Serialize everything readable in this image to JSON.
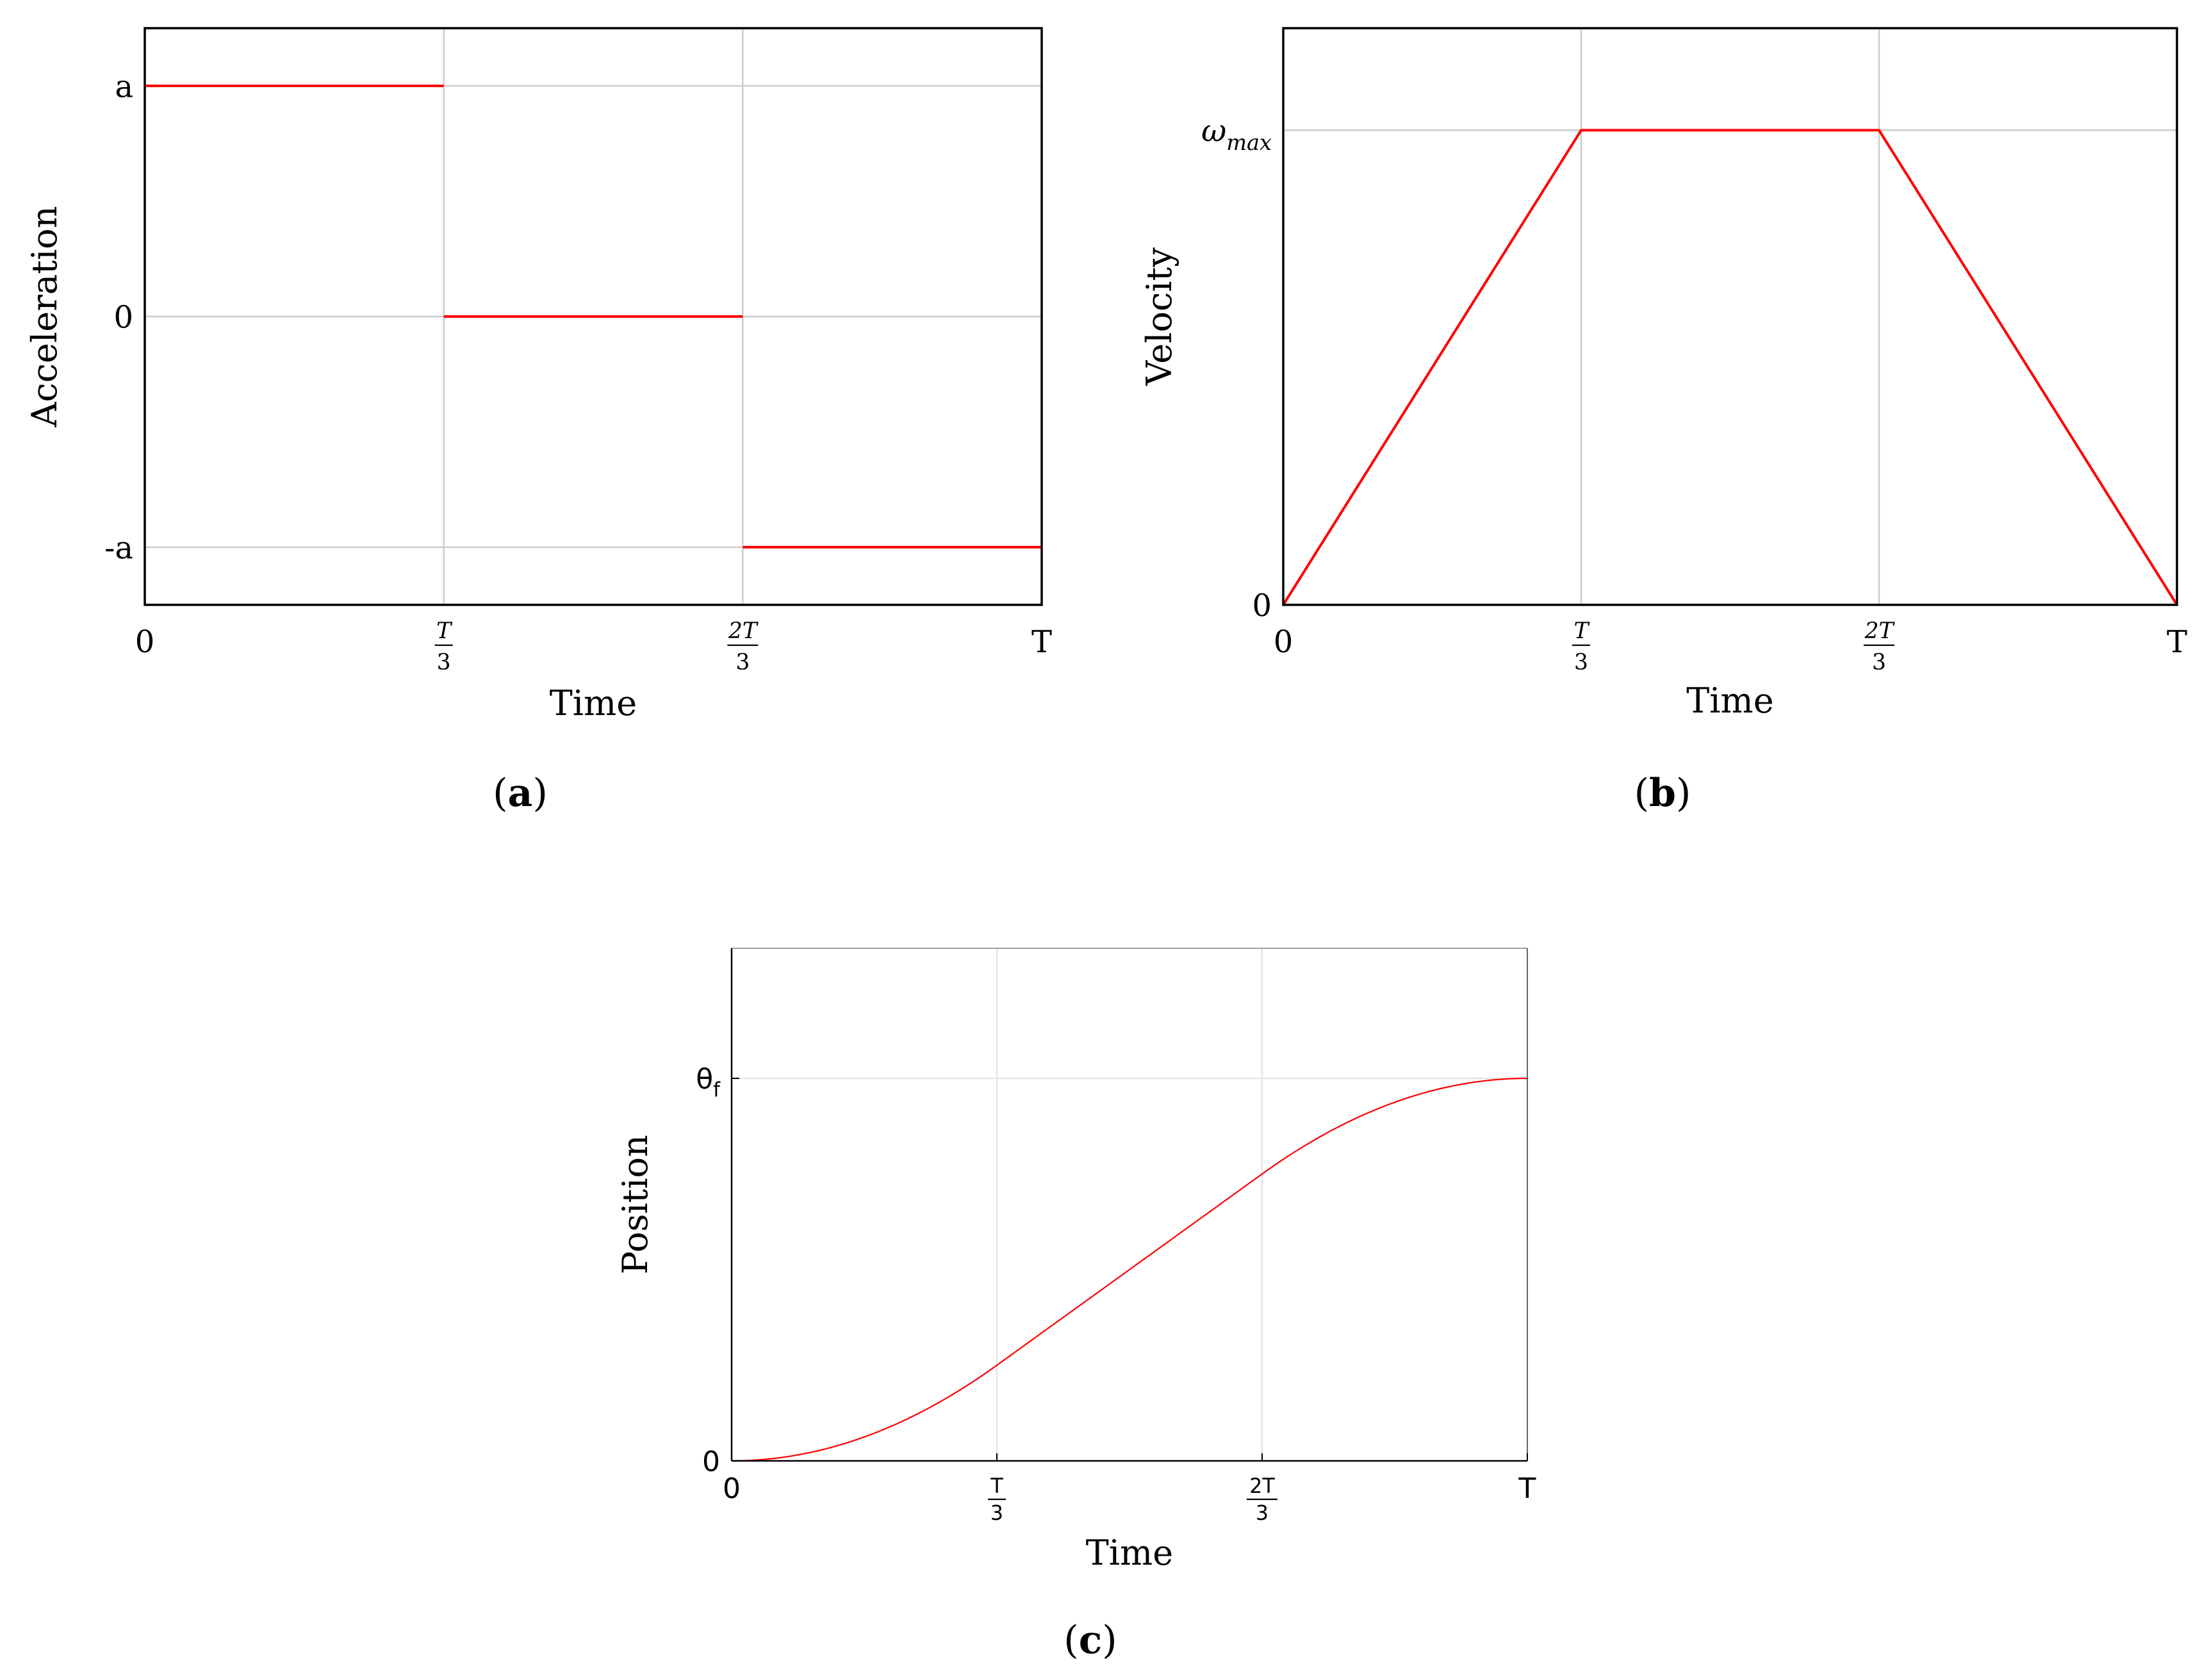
{
  "chart_data": [
    {
      "id": "a",
      "type": "line",
      "panel_label": "a",
      "xlabel": "Time",
      "ylabel": "Acceleration",
      "xlim": [
        0,
        3
      ],
      "ylim": [
        -1.25,
        1.25
      ],
      "x_ticks": [
        {
          "value": 0,
          "label": "0",
          "kind": "plain"
        },
        {
          "value": 1,
          "num": "T",
          "den": "3",
          "kind": "fraction"
        },
        {
          "value": 2,
          "num": "2T",
          "den": "3",
          "kind": "fraction"
        },
        {
          "value": 3,
          "label": "T",
          "kind": "plain"
        }
      ],
      "y_ticks": [
        {
          "value": 1,
          "label": "a"
        },
        {
          "value": 0,
          "label": "0"
        },
        {
          "value": -1,
          "label": "-a"
        }
      ],
      "grid": true,
      "series": [
        {
          "color": "#ff0000",
          "segments": [
            [
              [
                0,
                1
              ],
              [
                1,
                1
              ]
            ],
            [
              [
                1,
                0
              ],
              [
                2,
                0
              ]
            ],
            [
              [
                2,
                -1
              ],
              [
                3,
                -1
              ]
            ]
          ]
        }
      ]
    },
    {
      "id": "b",
      "type": "line",
      "panel_label": "b",
      "xlabel": "Time",
      "ylabel": "Velocity",
      "xlim": [
        0,
        3
      ],
      "ylim": [
        0,
        1.215
      ],
      "x_ticks": [
        {
          "value": 0,
          "label": "0",
          "kind": "plain"
        },
        {
          "value": 1,
          "num": "T",
          "den": "3",
          "kind": "fraction"
        },
        {
          "value": 2,
          "num": "2T",
          "den": "3",
          "kind": "fraction"
        },
        {
          "value": 3,
          "label": "T",
          "kind": "plain"
        }
      ],
      "y_ticks": [
        {
          "value": 1,
          "label": "ω",
          "sub": "max",
          "kind": "subscript"
        },
        {
          "value": 0,
          "label": "0",
          "kind": "plain"
        }
      ],
      "grid": true,
      "series": [
        {
          "color": "#ff0000",
          "segments": [
            [
              [
                0,
                0
              ],
              [
                1,
                1
              ],
              [
                2,
                1
              ],
              [
                3,
                0
              ]
            ]
          ]
        }
      ]
    },
    {
      "id": "c",
      "type": "line",
      "panel_label": "c",
      "xlabel": "Time",
      "ylabel": "Position",
      "xlim": [
        0,
        3
      ],
      "ylim": [
        0,
        1.34
      ],
      "x_ticks": [
        {
          "value": 0,
          "label": "0",
          "kind": "plain"
        },
        {
          "value": 1,
          "num": "T",
          "den": "3",
          "kind": "fraction"
        },
        {
          "value": 2,
          "num": "2T",
          "den": "3",
          "kind": "fraction"
        },
        {
          "value": 3,
          "label": "T",
          "kind": "plain"
        }
      ],
      "y_ticks": [
        {
          "value": 1,
          "label": "θ",
          "sub": "f",
          "kind": "subscript"
        },
        {
          "value": 0,
          "label": "0",
          "kind": "plain"
        }
      ],
      "grid": true,
      "series": [
        {
          "color": "#ff0000",
          "curve": "trapezoidal_position",
          "samples": 120
        }
      ]
    }
  ]
}
